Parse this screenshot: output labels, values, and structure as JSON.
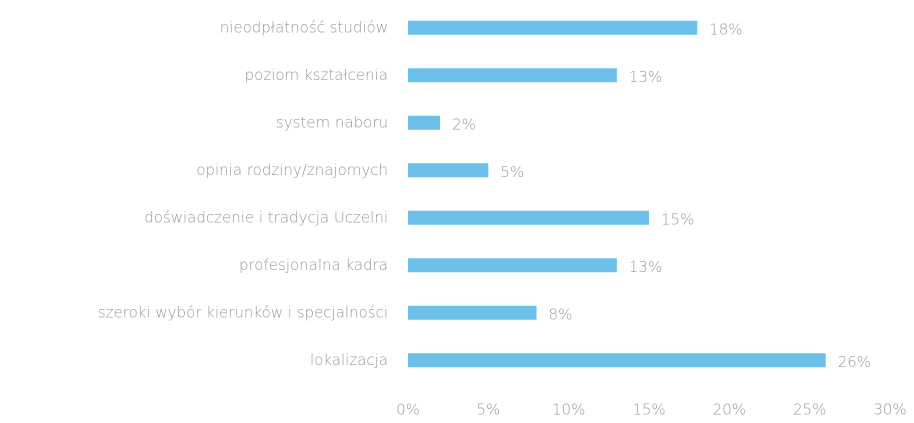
{
  "chart_data": {
    "type": "bar",
    "orientation": "horizontal",
    "categories": [
      "nieodpłatność studiów",
      "poziom kształcenia",
      "system naboru",
      "opinia rodziny/znajomych",
      "doświadczenie i tradycja Uczelni",
      "profesjonalna kadra",
      "szeroki wybór kierunków i specjalności",
      "lokalizacja"
    ],
    "values": [
      18,
      13,
      2,
      5,
      15,
      13,
      8,
      26
    ],
    "value_labels": [
      "18%",
      "13%",
      "2%",
      "5%",
      "15%",
      "13%",
      "8%",
      "26%"
    ],
    "color": "#6cc0ea",
    "xlim": [
      0,
      30
    ],
    "xticks": [
      {
        "value": 0,
        "label": "0%"
      },
      {
        "value": 5,
        "label": "5%"
      },
      {
        "value": 10,
        "label": "10%"
      },
      {
        "value": 15,
        "label": "15%"
      },
      {
        "value": 20,
        "label": "20%"
      },
      {
        "value": 25,
        "label": "25%"
      },
      {
        "value": 30,
        "label": "30%"
      }
    ],
    "grid": false
  }
}
